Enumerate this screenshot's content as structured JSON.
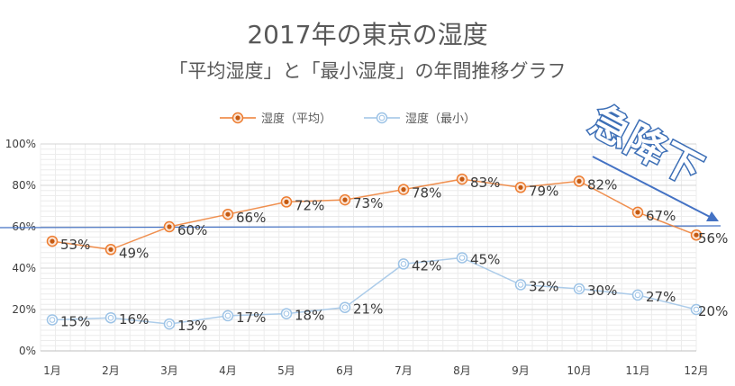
{
  "chart_data": {
    "type": "line",
    "title": "2017年の東京の湿度",
    "subtitle": "「平均湿度」と「最小湿度」の年間推移グラフ",
    "categories": [
      "1月",
      "2月",
      "3月",
      "4月",
      "5月",
      "6月",
      "7月",
      "8月",
      "9月",
      "10月",
      "11月",
      "12月"
    ],
    "ylim": [
      0,
      100
    ],
    "yticks": [
      "0%",
      "20%",
      "40%",
      "60%",
      "80%",
      "100%"
    ],
    "grid": true,
    "legend": "top",
    "series": [
      {
        "name": "湿度（平均）",
        "color": "#ed7d31",
        "values": [
          53,
          49,
          60,
          66,
          72,
          73,
          78,
          83,
          79,
          82,
          67,
          56
        ],
        "labels": [
          "53%",
          "49%",
          "60%",
          "66%",
          "72%",
          "73%",
          "78%",
          "83%",
          "79%",
          "82%",
          "67%",
          "56%"
        ]
      },
      {
        "name": "湿度（最小）",
        "color": "#9dc3e6",
        "values": [
          15,
          16,
          13,
          17,
          18,
          21,
          42,
          45,
          32,
          30,
          27,
          20
        ],
        "labels": [
          "15%",
          "16%",
          "13%",
          "17%",
          "18%",
          "21%",
          "42%",
          "45%",
          "32%",
          "30%",
          "27%",
          "20%"
        ]
      }
    ],
    "reference_line": {
      "y": 60,
      "color": "#4472c4"
    },
    "annotation": {
      "text": "急降下",
      "color": "#4472c4"
    }
  }
}
